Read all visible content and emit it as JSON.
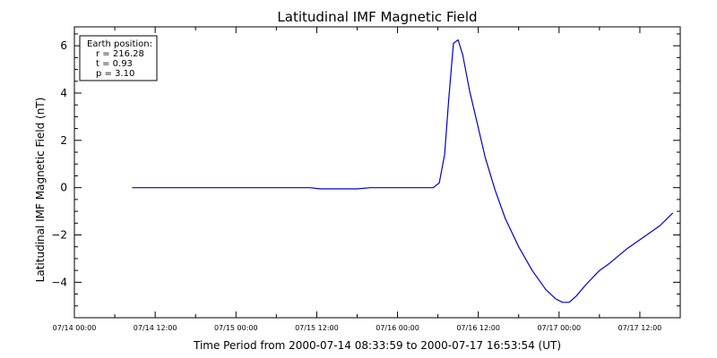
{
  "chart_data": {
    "type": "line",
    "title": "Latitudinal IMF Magnetic Field",
    "xlabel": "Time Period from 2000-07-14 08:33:59 to 2000-07-17 16:53:54 (UT)",
    "ylabel": "Latitudinal IMF Magnetic Field (nT)",
    "x_unit": "hours since 07/14 00:00",
    "xlim": [
      0,
      90
    ],
    "ylim": [
      -5.5,
      6.8
    ],
    "x_ticks": [
      {
        "value": 0,
        "label": "07/14 00:00"
      },
      {
        "value": 12,
        "label": "07/14 12:00"
      },
      {
        "value": 24,
        "label": "07/15 00:00"
      },
      {
        "value": 36,
        "label": "07/15 12:00"
      },
      {
        "value": 48,
        "label": "07/16 00:00"
      },
      {
        "value": 60,
        "label": "07/16 12:00"
      },
      {
        "value": 72,
        "label": "07/17 00:00"
      },
      {
        "value": 84,
        "label": "07/17 12:00"
      }
    ],
    "y_ticks": [
      {
        "value": -4,
        "label": "−4"
      },
      {
        "value": -2,
        "label": "−2"
      },
      {
        "value": 0,
        "label": "0"
      },
      {
        "value": 2,
        "label": "2"
      },
      {
        "value": 4,
        "label": "4"
      },
      {
        "value": 6,
        "label": "6"
      }
    ],
    "legend": {
      "placement": "top-left",
      "lines": [
        "Earth position:",
        "r = 216.28",
        "t = 0.93",
        "p = 3.10"
      ]
    },
    "series": [
      {
        "color": "#0000cc",
        "points": [
          [
            8.57,
            0.0
          ],
          [
            15,
            0.0
          ],
          [
            22,
            0.0
          ],
          [
            30,
            0.0
          ],
          [
            35,
            0.0
          ],
          [
            36.5,
            -0.05
          ],
          [
            40,
            -0.05
          ],
          [
            42,
            -0.05
          ],
          [
            44,
            0.0
          ],
          [
            47,
            0.0
          ],
          [
            51,
            0.0
          ],
          [
            53.3,
            0.0
          ],
          [
            54.2,
            0.2
          ],
          [
            55.0,
            1.4
          ],
          [
            55.6,
            3.7
          ],
          [
            56.3,
            6.1
          ],
          [
            57.0,
            6.25
          ],
          [
            57.7,
            5.6
          ],
          [
            58.7,
            4.1
          ],
          [
            59.7,
            2.9
          ],
          [
            61.0,
            1.3
          ],
          [
            62.5,
            -0.1
          ],
          [
            64.0,
            -1.3
          ],
          [
            66.0,
            -2.5
          ],
          [
            68.0,
            -3.5
          ],
          [
            70.0,
            -4.3
          ],
          [
            71.5,
            -4.7
          ],
          [
            72.5,
            -4.85
          ],
          [
            73.5,
            -4.85
          ],
          [
            74.5,
            -4.6
          ],
          [
            76.0,
            -4.1
          ],
          [
            78.0,
            -3.5
          ],
          [
            79.5,
            -3.2
          ],
          [
            82.0,
            -2.6
          ],
          [
            84.5,
            -2.1
          ],
          [
            87.0,
            -1.6
          ],
          [
            88.9,
            -1.07
          ]
        ]
      }
    ]
  }
}
